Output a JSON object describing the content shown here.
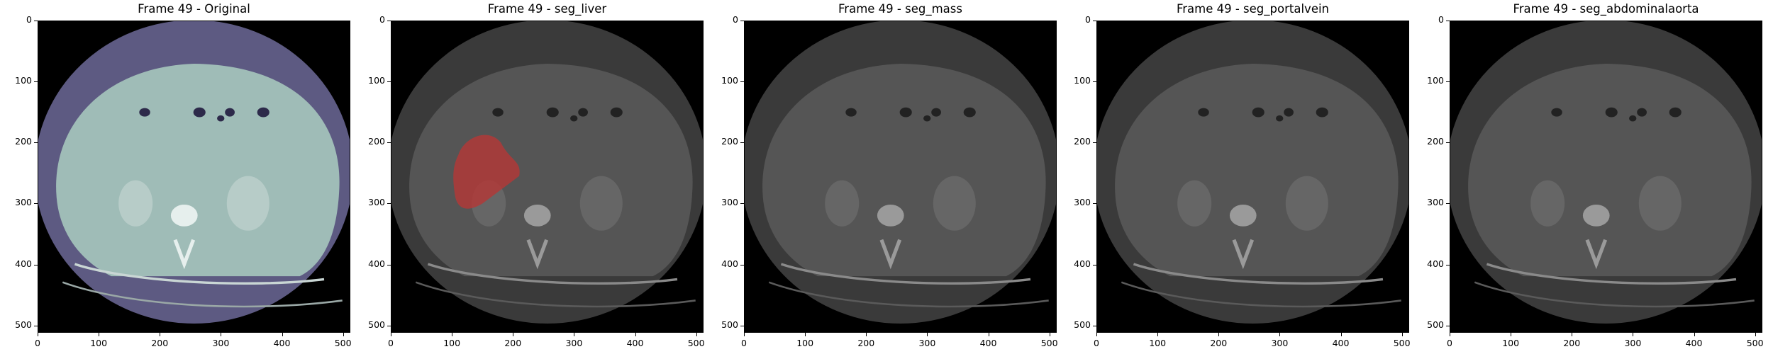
{
  "figure": {
    "panels": [
      {
        "title": "Frame 49 - Original",
        "mode": "original",
        "overlay": null
      },
      {
        "title": "Frame 49 - seg_liver",
        "mode": "dim",
        "overlay": "#b03a38"
      },
      {
        "title": "Frame 49 - seg_mass",
        "mode": "dim",
        "overlay": null
      },
      {
        "title": "Frame 49 - seg_portalvein",
        "mode": "dim",
        "overlay": null
      },
      {
        "title": "Frame 49 - seg_abdominalaorta",
        "mode": "dim",
        "overlay": null
      }
    ],
    "axis": {
      "x_ticks": [
        "0",
        "100",
        "200",
        "300",
        "400",
        "500"
      ],
      "y_ticks": [
        "0",
        "100",
        "200",
        "300",
        "400",
        "500"
      ],
      "x_values": [
        0,
        100,
        200,
        300,
        400,
        500
      ],
      "y_values": [
        0,
        100,
        200,
        300,
        400,
        500
      ],
      "range": [
        0,
        512
      ]
    },
    "colors": {
      "original_body": "#5d5a82",
      "original_tissue": "#9fbcb7",
      "dim_body": "#3a3a3a",
      "dim_tissue": "#555555",
      "liver_overlay": "#b03a38"
    }
  }
}
